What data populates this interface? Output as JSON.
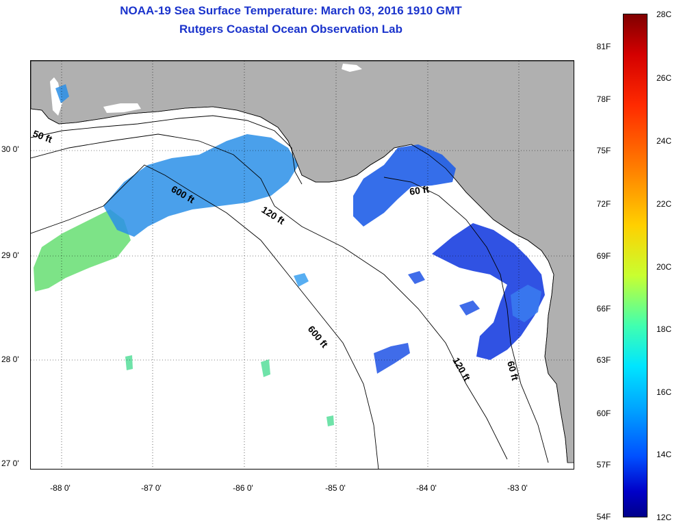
{
  "title_line1": "NOAA-19 Sea Surface Temperature:  March 03, 2016 1910 GMT",
  "title_line2": "Rutgers Coastal Ocean Observation Lab",
  "lat_labels": [
    "30 0'",
    "29 0'",
    "28 0'",
    "27 0'"
  ],
  "lon_labels": [
    "-88 0'",
    "-87 0'",
    "-86 0'",
    "-85 0'",
    "-84 0'",
    "-83 0'"
  ],
  "depth_contours": [
    "50 ft",
    "600 ft",
    "120 ft",
    "60 ft",
    "600 ft",
    "120 ft",
    "60 ft"
  ],
  "colorbar": {
    "fahrenheit": [
      "81F",
      "78F",
      "75F",
      "72F",
      "69F",
      "66F",
      "63F",
      "60F",
      "57F",
      "54F"
    ],
    "celsius": [
      "28C",
      "26C",
      "24C",
      "22C",
      "20C",
      "18C",
      "16C",
      "14C",
      "12C"
    ]
  },
  "colors": {
    "land": "#b0b0b0",
    "title": "#1a33cc",
    "water": "#ffffff"
  }
}
